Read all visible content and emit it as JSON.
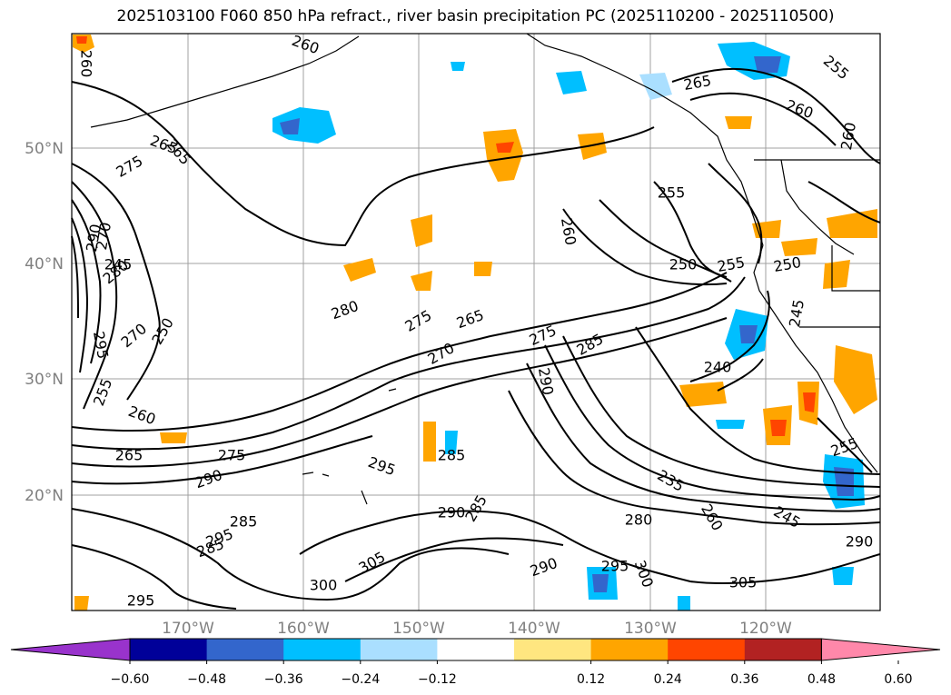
{
  "title": "2025103100 F060 850 hPa refract., river basin precipitation PC (2025110200 - 2025110500)",
  "axes": {
    "lat_labels": [
      "50°N",
      "40°N",
      "30°N",
      "20°N"
    ],
    "lon_labels": [
      "170°W",
      "160°W",
      "150°W",
      "140°W",
      "130°W",
      "120°W"
    ],
    "grid": true
  },
  "colorbar": {
    "tick_labels": [
      "−0.60",
      "−0.48",
      "−0.36",
      "−0.24",
      "−0.12",
      "0.12",
      "0.24",
      "0.36",
      "0.48",
      "0.60"
    ],
    "colors": [
      "#9933cc",
      "#000099",
      "#3366cc",
      "#00bfff",
      "#aadfff",
      "#ffffff",
      "#ffe680",
      "#ffa500",
      "#ff4500",
      "#b22222",
      "#ff88aa"
    ],
    "extend": "both"
  },
  "contour_labels": [
    "260",
    "265",
    "275",
    "270",
    "290",
    "280",
    "295",
    "270",
    "250",
    "245",
    "255",
    "260",
    "265",
    "275",
    "290",
    "285",
    "295",
    "285",
    "295",
    "300",
    "295",
    "285",
    "290",
    "285",
    "280",
    "275",
    "265",
    "270",
    "275",
    "285",
    "290",
    "255",
    "260",
    "250",
    "255",
    "250",
    "260",
    "245",
    "240",
    "235",
    "260",
    "245",
    "255",
    "280",
    "290",
    "295",
    "300",
    "305",
    "290",
    "305",
    "260",
    "255",
    "260",
    "265",
    "265"
  ],
  "map_colors": {
    "contour": "#000000",
    "grid": "#a0a0a0"
  }
}
